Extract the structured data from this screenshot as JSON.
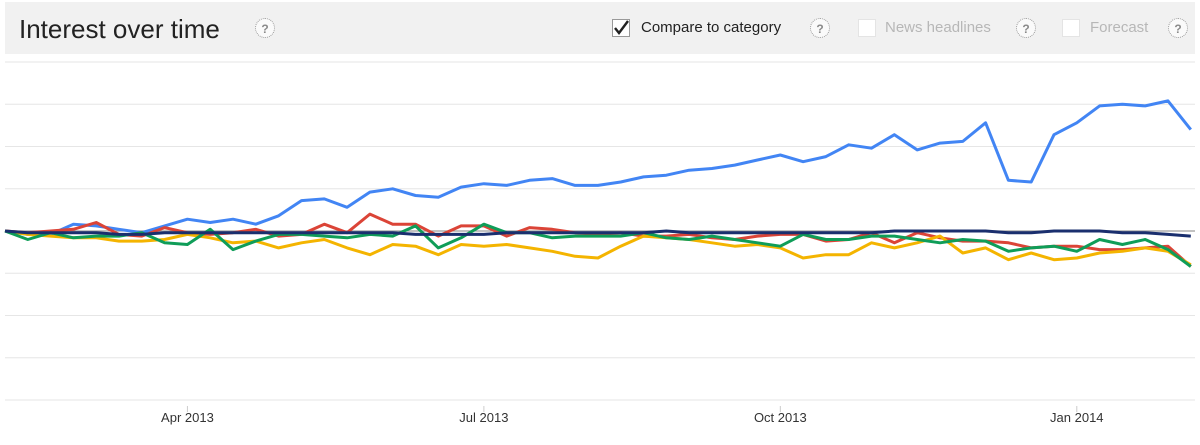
{
  "header": {
    "title": "Interest over time",
    "help_glyph": "?",
    "options": [
      {
        "label": "Compare to category",
        "checked": true
      },
      {
        "label": "News headlines",
        "checked": false
      },
      {
        "label": "Forecast",
        "checked": false
      }
    ]
  },
  "chart_data": {
    "type": "line",
    "title": "",
    "xlabel": "",
    "ylabel": "",
    "ylim": [
      0,
      200
    ],
    "grid": true,
    "x_ticks": [
      {
        "label": "Apr 2013",
        "index": 8
      },
      {
        "label": "Jul 2013",
        "index": 21
      },
      {
        "label": "Oct 2013",
        "index": 34
      },
      {
        "label": "Jan 2014",
        "index": 47
      }
    ],
    "reference_line": 100,
    "series_count": 52,
    "series": [
      {
        "color": "#4285f4",
        "values": [
          100,
          98,
          98,
          104,
          103,
          101,
          99,
          103,
          107,
          105,
          107,
          104,
          109,
          118,
          119,
          114,
          123,
          125,
          121,
          120,
          126,
          128,
          127,
          130,
          131,
          127,
          127,
          129,
          132,
          133,
          136,
          137,
          139,
          142,
          145,
          141,
          144,
          151,
          149,
          157,
          148,
          152,
          153,
          164,
          130,
          129,
          157,
          164,
          174,
          175,
          174,
          177,
          160
        ]
      },
      {
        "color": "#db4437",
        "values": [
          100,
          99,
          100,
          101,
          105,
          98,
          97,
          102,
          99,
          98,
          99,
          101,
          97,
          98,
          104,
          99,
          110,
          104,
          104,
          97,
          103,
          103,
          97,
          102,
          101,
          99,
          98,
          99,
          97,
          97,
          98,
          96,
          95,
          97,
          98,
          98,
          94,
          95,
          99,
          93,
          99,
          96,
          94,
          94,
          93,
          90,
          91,
          91,
          89,
          89,
          90,
          91,
          79
        ]
      },
      {
        "color": "#f4b400",
        "values": [
          100,
          98,
          97,
          96,
          96,
          94,
          94,
          95,
          98,
          96,
          93,
          94,
          90,
          93,
          95,
          90,
          86,
          92,
          91,
          86,
          92,
          91,
          92,
          90,
          88,
          85,
          84,
          91,
          97,
          96,
          95,
          93,
          91,
          92,
          90,
          84,
          86,
          86,
          93,
          90,
          93,
          97,
          87,
          90,
          83,
          87,
          83,
          84,
          87,
          88,
          90,
          88,
          80
        ]
      },
      {
        "color": "#0f9d58",
        "values": [
          100,
          95,
          99,
          96,
          97,
          97,
          99,
          93,
          92,
          101,
          89,
          94,
          98,
          98,
          97,
          96,
          98,
          97,
          103,
          90,
          96,
          104,
          99,
          99,
          96,
          97,
          97,
          97,
          99,
          96,
          95,
          97,
          95,
          93,
          91,
          98,
          95,
          95,
          97,
          97,
          95,
          93,
          95,
          94,
          88,
          90,
          91,
          88,
          95,
          92,
          95,
          89,
          79
        ]
      },
      {
        "color": "#1a2f6e",
        "values": [
          100,
          99,
          99,
          99,
          99,
          98,
          98,
          99,
          99,
          99,
          99,
          99,
          99,
          99,
          99,
          99,
          99,
          99,
          98,
          98,
          98,
          98,
          99,
          99,
          99,
          99,
          99,
          99,
          99,
          100,
          99,
          99,
          99,
          99,
          99,
          99,
          99,
          99,
          99,
          100,
          100,
          100,
          100,
          100,
          99,
          99,
          100,
          100,
          100,
          99,
          99,
          98,
          97
        ]
      }
    ]
  }
}
